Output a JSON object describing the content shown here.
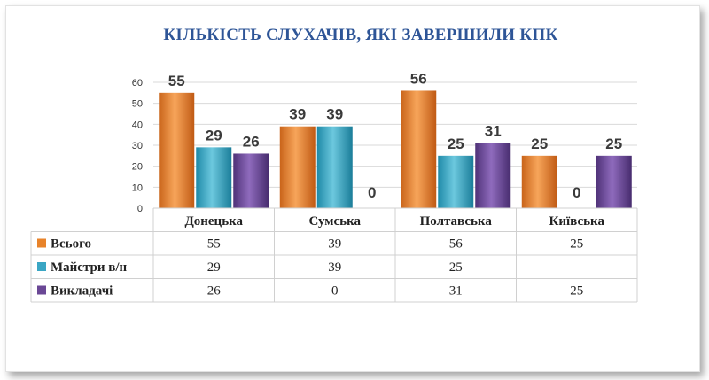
{
  "chart_data": {
    "type": "bar",
    "title": "КІЛЬКІСТЬ СЛУХАЧІВ, ЯКІ ЗАВЕРШИЛИ  КПК",
    "categories": [
      "Донецька",
      "Сумська",
      "Полтавська",
      "Київська"
    ],
    "series": [
      {
        "name": "Всього",
        "values": [
          55,
          39,
          56,
          25
        ],
        "color": "#e8832a"
      },
      {
        "name": "Майстри в/н",
        "values": [
          29,
          39,
          25,
          0
        ],
        "color": "#3aa6c4"
      },
      {
        "name": "Викладачі",
        "values": [
          26,
          0,
          31,
          25
        ],
        "color": "#6a4795"
      }
    ],
    "table_values": [
      [
        "55",
        "39",
        "56",
        "25"
      ],
      [
        "29",
        "39",
        "25",
        ""
      ],
      [
        "26",
        "0",
        "31",
        "25"
      ]
    ],
    "yticks": [
      0,
      10,
      20,
      30,
      40,
      50,
      60
    ],
    "ylim": [
      0,
      60
    ],
    "grid": true,
    "legend": "data-table"
  }
}
